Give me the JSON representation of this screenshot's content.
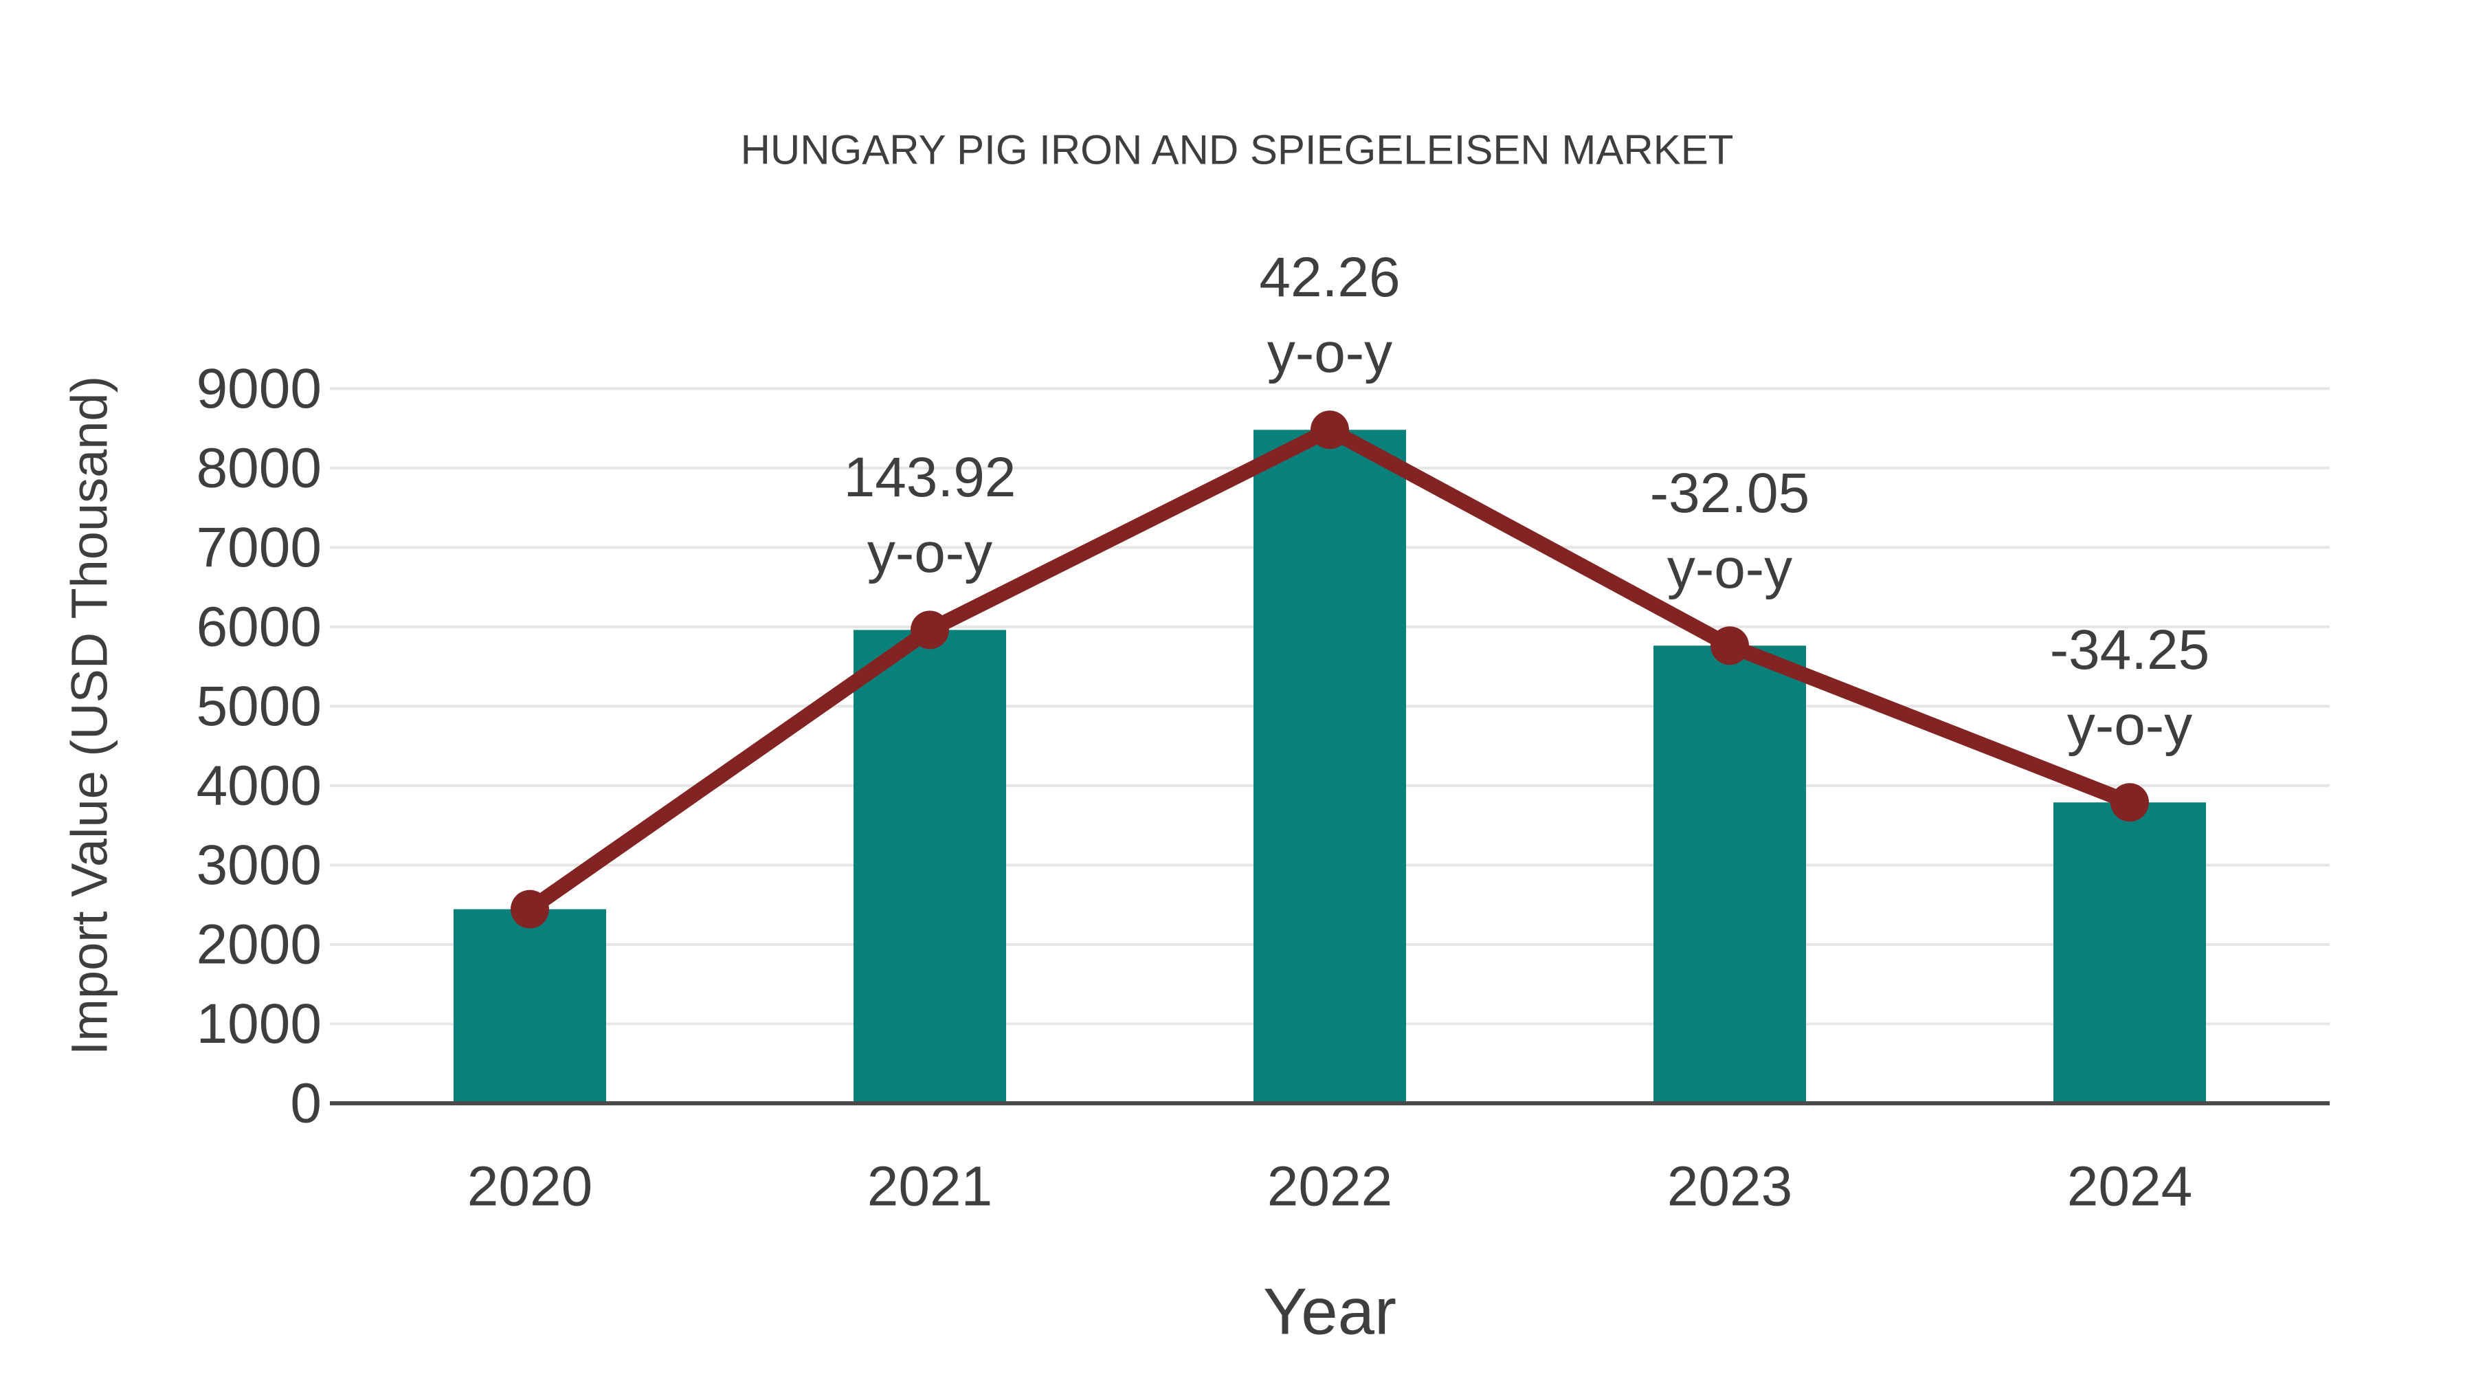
{
  "page": {
    "background": "#FFFFFF"
  },
  "chart_data": {
    "type": "bar",
    "title": "HUNGARY PIG IRON AND SPIEGELEISEN MARKET",
    "xlabel": "Year",
    "ylabel": "Import Value (USD Thousand)",
    "categories": [
      "2020",
      "2021",
      "2022",
      "2023",
      "2024"
    ],
    "series": [
      {
        "name": "Import Value bars",
        "type": "bar",
        "values": [
          2444,
          5961,
          8481,
          5763,
          3789
        ]
      },
      {
        "name": "Import Value trend line",
        "type": "line",
        "values": [
          2444,
          5961,
          8481,
          5763,
          3789
        ]
      }
    ],
    "annotations": [
      {
        "category": "2021",
        "line1": "143.92",
        "line2": "y-o-y"
      },
      {
        "category": "2022",
        "line1": "42.26",
        "line2": "y-o-y"
      },
      {
        "category": "2023",
        "line1": "-32.05",
        "line2": "y-o-y"
      },
      {
        "category": "2024",
        "line1": "-34.25",
        "line2": "y-o-y"
      }
    ],
    "ylim": [
      0,
      9000
    ],
    "ytick_step": 1000,
    "yticks": [
      0,
      1000,
      2000,
      3000,
      4000,
      5000,
      6000,
      7000,
      8000,
      9000
    ],
    "grid": true,
    "legend_position": "none",
    "colors": {
      "bar": "#0A807A",
      "line": "#822424",
      "marker": "#822424",
      "text": "#3E3E3E",
      "grid": "#E6E6E6",
      "axis": "#4A4A4A",
      "background": "#FFFFFF"
    }
  }
}
